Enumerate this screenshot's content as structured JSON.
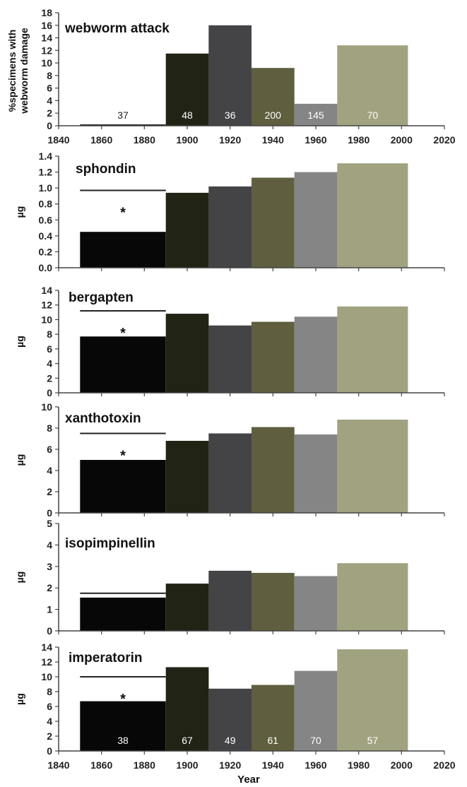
{
  "chart_data": {
    "type": "bar",
    "xlabel": "Year",
    "x_ticks": [
      "1840",
      "1860",
      "1880",
      "1900",
      "1920",
      "1940",
      "1960",
      "1980",
      "2000",
      "2020"
    ],
    "xlim": [
      1840,
      2020
    ],
    "bins": [
      [
        1850,
        1890
      ],
      [
        1890,
        1910
      ],
      [
        1910,
        1930
      ],
      [
        1930,
        1950
      ],
      [
        1950,
        1970
      ],
      [
        1970,
        2003
      ]
    ],
    "colors": [
      "#070707",
      "#212314",
      "#444446",
      "#5f5f3f",
      "#858586",
      "#a1a27f"
    ],
    "panels": [
      {
        "title": "webworm attack",
        "ylabel": "%specimens with webworm damage",
        "ylim": [
          0,
          18
        ],
        "y_ticks": [
          "0",
          "2",
          "4",
          "6",
          "8",
          "10",
          "12",
          "14",
          "16",
          "18"
        ],
        "values": [
          0.2,
          11.5,
          16,
          9.2,
          3.5,
          12.8
        ],
        "sample_sizes": [
          "37",
          "48",
          "36",
          "200",
          "145",
          "70"
        ]
      },
      {
        "title": "sphondin",
        "ylabel": "µg",
        "ylim": [
          0,
          1.4
        ],
        "y_ticks": [
          "0.0",
          "0.2",
          "0.4",
          "0.6",
          "0.8",
          "1.0",
          "1.2",
          "1.4"
        ],
        "values": [
          0.45,
          0.94,
          1.02,
          1.13,
          1.2,
          1.31
        ],
        "significance": {
          "label": "*",
          "value": 0.97
        }
      },
      {
        "title": "bergapten",
        "ylabel": "µg",
        "ylim": [
          0,
          14
        ],
        "y_ticks": [
          "0",
          "2",
          "4",
          "6",
          "8",
          "10",
          "12",
          "14"
        ],
        "values": [
          7.7,
          10.8,
          9.2,
          9.7,
          10.4,
          11.8
        ],
        "significance": {
          "label": "*",
          "value": 11.2
        }
      },
      {
        "title": "xanthotoxin",
        "ylabel": "µg",
        "ylim": [
          0,
          10
        ],
        "y_ticks": [
          "0",
          "2",
          "4",
          "6",
          "8",
          "10"
        ],
        "values": [
          5.0,
          6.8,
          7.5,
          8.1,
          7.4,
          8.8
        ],
        "significance": {
          "label": "*",
          "value": 7.5
        }
      },
      {
        "title": "isopimpinellin",
        "ylabel": "µg",
        "ylim": [
          0,
          5
        ],
        "y_ticks": [
          "0",
          "1",
          "2",
          "3",
          "4",
          "5"
        ],
        "values": [
          1.55,
          2.2,
          2.8,
          2.7,
          2.55,
          3.15
        ],
        "significance": {
          "label": "",
          "value": 1.75
        }
      },
      {
        "title": "imperatorin",
        "ylabel": "µg",
        "ylim": [
          0,
          14
        ],
        "y_ticks": [
          "0",
          "2",
          "4",
          "6",
          "8",
          "10",
          "12",
          "14"
        ],
        "values": [
          6.7,
          11.3,
          8.4,
          8.9,
          10.8,
          13.7
        ],
        "sample_sizes": [
          "38",
          "67",
          "49",
          "61",
          "70",
          "57"
        ],
        "significance": {
          "label": "*",
          "value": 10.0
        }
      }
    ]
  }
}
